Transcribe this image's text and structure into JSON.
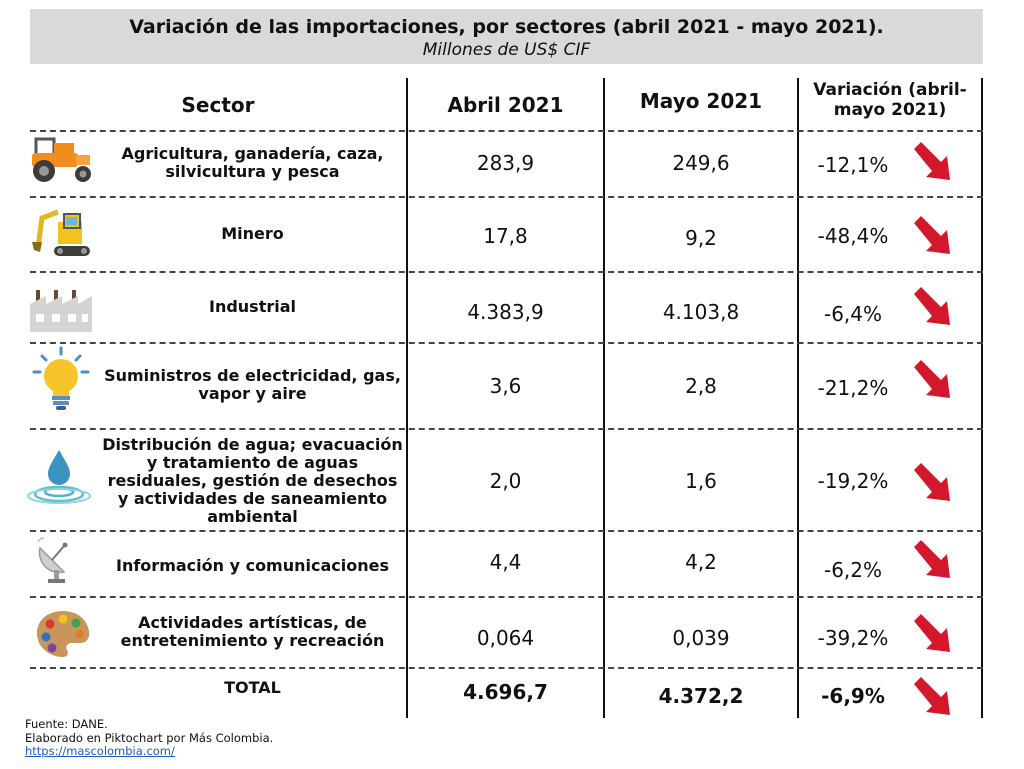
{
  "title": "Variación de las importaciones, por sectores (abril 2021 - mayo 2021).",
  "subtitle": "Millones de US$ CIF",
  "headers": {
    "sector": "Sector",
    "april": "Abril 2021",
    "may": "Mayo 2021",
    "variation": "Variación (abril-mayo 2021)"
  },
  "rows": [
    {
      "icon": "tractor-icon",
      "sector": "Agricultura, ganadería, caza, silvicultura y pesca",
      "april": "283,9",
      "may": "249,6",
      "variation": "-12,1%"
    },
    {
      "icon": "excavator-icon",
      "sector": "Minero",
      "april": "17,8",
      "may": "9,2",
      "variation": "-48,4%"
    },
    {
      "icon": "factory-icon",
      "sector": "Industrial",
      "april": "4.383,9",
      "may": "4.103,8",
      "variation": "-6,4%"
    },
    {
      "icon": "lightbulb-icon",
      "sector": "Suministros de electricidad, gas, vapor y aire",
      "april": "3,6",
      "may": "2,8",
      "variation": "-21,2%"
    },
    {
      "icon": "water-drop-icon",
      "sector": "Distribución de agua; evacuación y tratamiento de aguas residuales, gestión de desechos y actividades de saneamiento ambiental",
      "april": "2,0",
      "may": "1,6",
      "variation": "-19,2%"
    },
    {
      "icon": "satellite-dish-icon",
      "sector": "Información y comunicaciones",
      "april": "4,4",
      "may": "4,2",
      "variation": "-6,2%"
    },
    {
      "icon": "paint-palette-icon",
      "sector": "Actividades artísticas, de entretenimiento y recreación",
      "april": "0,064",
      "may": "0,039",
      "variation": "-39,2%"
    }
  ],
  "total": {
    "label": "TOTAL",
    "april": "4.696,7",
    "may": "4.372,2",
    "variation": "-6,9%"
  },
  "footer": {
    "source": "Fuente: DANE.",
    "credit": "Elaborado en Piktochart por Más Colombia.",
    "link": "https://mascolombia.com/"
  },
  "colors": {
    "arrow": "#d3182c",
    "title_band": "#d9d9d9"
  }
}
